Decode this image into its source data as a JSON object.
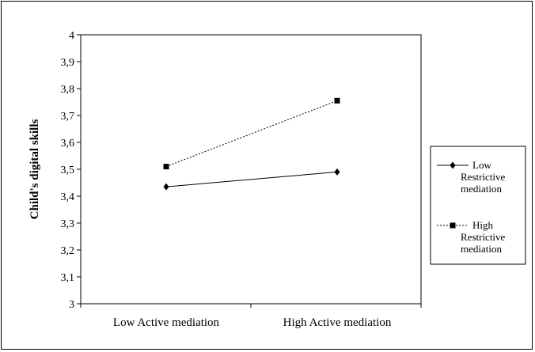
{
  "chart_data": {
    "type": "line",
    "categories": [
      "Low Active mediation",
      "High Active mediation"
    ],
    "series": [
      {
        "name": "Low Restrictive mediation",
        "values": [
          3.435,
          3.49
        ],
        "marker": "diamond",
        "dash": "solid"
      },
      {
        "name": "High Restrictive mediation",
        "values": [
          3.51,
          3.755
        ],
        "marker": "square",
        "dash": "dotted"
      }
    ],
    "ylabel": "Child's  digital skills",
    "ylim": [
      3,
      4
    ],
    "yticks": [
      "3",
      "3,1",
      "3,2",
      "3,3",
      "3,4",
      "3,5",
      "3,6",
      "3,7",
      "3,8",
      "3,9",
      "4"
    ],
    "grid": false,
    "legend": {
      "position": "right",
      "entries": [
        [
          "Low",
          "Restrictive",
          "mediation"
        ],
        [
          "High",
          "Restrictive",
          "mediation"
        ]
      ]
    }
  }
}
